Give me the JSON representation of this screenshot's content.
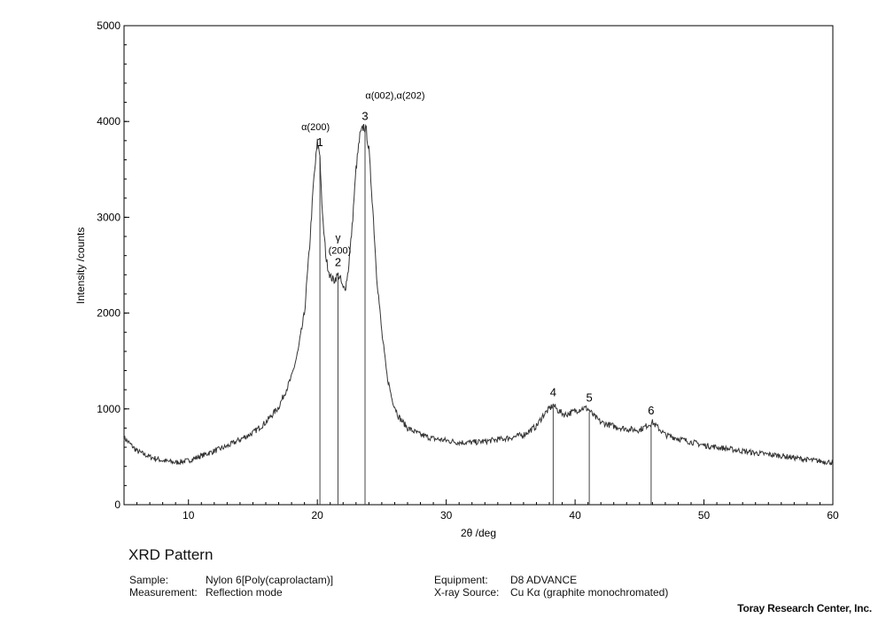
{
  "chart_data": {
    "type": "line",
    "title": "XRD Pattern",
    "xlabel": "2θ /deg",
    "ylabel": "Intensity /counts",
    "xlim": [
      5,
      60
    ],
    "ylim": [
      0,
      5000
    ],
    "xticks": [
      10,
      20,
      30,
      40,
      50,
      60
    ],
    "yticks": [
      0,
      1000,
      2000,
      3000,
      4000,
      5000
    ],
    "grid": false,
    "series": [
      {
        "x": [
          5,
          6,
          7,
          8,
          9,
          10,
          11,
          12,
          13,
          14,
          15,
          16,
          17,
          18,
          18.5,
          19,
          19.4,
          19.7,
          20.0,
          20.2,
          20.4,
          20.7,
          21.0,
          21.3,
          21.6,
          21.8,
          22.0,
          22.2,
          22.4,
          22.7,
          23.0,
          23.3,
          23.6,
          23.8,
          24.0,
          24.3,
          24.6,
          25.0,
          25.4,
          25.8,
          26.3,
          27,
          28,
          29,
          30,
          31,
          32,
          33,
          34,
          35,
          36,
          37,
          37.5,
          38,
          38.3,
          38.7,
          39.2,
          39.7,
          40.2,
          40.7,
          41.0,
          41.5,
          42,
          43,
          44,
          45,
          46,
          47,
          48,
          50,
          52,
          54,
          56,
          58,
          60
        ],
        "y": [
          700,
          560,
          500,
          460,
          440,
          460,
          510,
          560,
          610,
          680,
          750,
          860,
          1020,
          1330,
          1600,
          2000,
          2700,
          3350,
          3780,
          3650,
          3000,
          2550,
          2380,
          2340,
          2400,
          2350,
          2250,
          2280,
          2450,
          2900,
          3500,
          3850,
          3950,
          3900,
          3700,
          3100,
          2400,
          1800,
          1350,
          1100,
          920,
          800,
          730,
          690,
          670,
          650,
          650,
          660,
          680,
          700,
          730,
          820,
          930,
          1000,
          1040,
          980,
          940,
          960,
          990,
          1010,
          1000,
          920,
          860,
          820,
          790,
          780,
          860,
          730,
          690,
          620,
          580,
          540,
          510,
          470,
          440
        ]
      }
    ],
    "peaks": [
      {
        "id": "1",
        "x": 20.2,
        "label": "α(200)"
      },
      {
        "id": "2",
        "x": 21.6,
        "label": "γ (200)"
      },
      {
        "id": "3",
        "x": 23.7,
        "label": "α(002),α(202)"
      },
      {
        "id": "4",
        "x": 38.3,
        "label": ""
      },
      {
        "id": "5",
        "x": 41.1,
        "label": ""
      },
      {
        "id": "6",
        "x": 45.9,
        "label": ""
      }
    ]
  },
  "footer": {
    "title": "XRD Pattern",
    "sample_key": "Sample:",
    "sample_val": "Nylon 6[Poly(caprolactam)]",
    "measurement_key": "Measurement:",
    "measurement_val": "Reflection mode",
    "equipment_key": "Equipment:",
    "equipment_val": "D8 ADVANCE",
    "source_key": "X-ray Source:",
    "source_val": "Cu Kα (graphite monochromated)",
    "credit": "Toray Research Center, Inc."
  }
}
